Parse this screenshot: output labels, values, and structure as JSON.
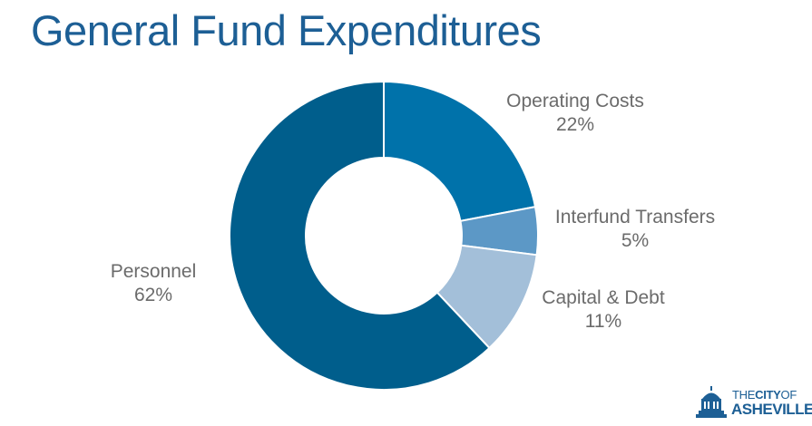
{
  "title": "General Fund Expenditures",
  "chart_data": {
    "type": "pie",
    "donut": true,
    "title": "General Fund Expenditures",
    "slices": [
      {
        "name": "Operating Costs",
        "value": 22,
        "label": "22%",
        "color": "#0072aa"
      },
      {
        "name": "Interfund Transfers",
        "value": 5,
        "label": "5%",
        "color": "#5c98c6"
      },
      {
        "name": "Capital & Debt",
        "value": 11,
        "label": "11%",
        "color": "#a3bfd9"
      },
      {
        "name": "Personnel",
        "value": 62,
        "label": "62%",
        "color": "#005e8c"
      }
    ],
    "legend": "none"
  },
  "logo": {
    "line1_the": "THE",
    "line1_city": "CITY",
    "line1_of": "OF",
    "line2": "ASHEVILLE",
    "color": "#1d5f95"
  }
}
